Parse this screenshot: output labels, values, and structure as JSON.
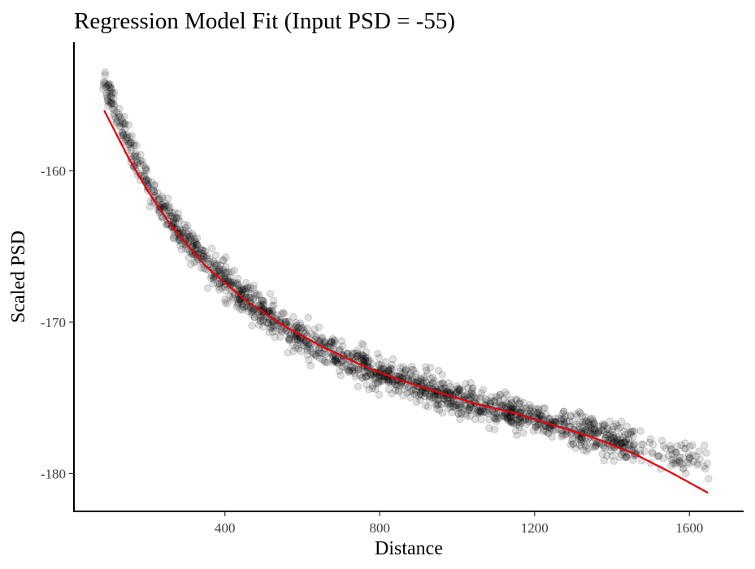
{
  "chart_data": {
    "type": "scatter",
    "title": "Regression Model Fit (Input PSD = -55)",
    "xlabel": "Distance",
    "ylabel": "Scaled PSD",
    "xlim": [
      10,
      1740
    ],
    "ylim": [
      -182.5,
      -151.5
    ],
    "x_ticks": [
      400,
      800,
      1200,
      1600
    ],
    "x_tick_labels": [
      "400",
      "800",
      "1200",
      "1600"
    ],
    "y_ticks": [
      -160,
      -170,
      -180
    ],
    "y_tick_labels": [
      "-160",
      "-170",
      "-180"
    ],
    "grid": false,
    "legend": "none",
    "scatter_color": "#000000",
    "fit_color": "#e8000b",
    "fit_line": {
      "x": [
        88,
        150,
        200,
        260,
        350,
        450,
        550,
        650,
        750,
        850,
        950,
        1050,
        1150,
        1250,
        1350,
        1450,
        1550,
        1650
      ],
      "y": [
        -156.0,
        -159.1,
        -161.3,
        -163.6,
        -166.3,
        -168.5,
        -170.2,
        -171.6,
        -172.8,
        -173.8,
        -174.6,
        -175.4,
        -176.0,
        -176.8,
        -177.6,
        -178.6,
        -179.9,
        -181.3
      ]
    },
    "scatter_trend": {
      "x": [
        88,
        150,
        200,
        260,
        350,
        450,
        550,
        650,
        750,
        850,
        950,
        1050,
        1150,
        1250,
        1350,
        1450,
        1550,
        1650
      ],
      "y": [
        -154.0,
        -158.2,
        -160.8,
        -163.3,
        -166.0,
        -168.4,
        -170.3,
        -171.7,
        -172.9,
        -173.9,
        -174.7,
        -175.4,
        -176.0,
        -176.7,
        -177.4,
        -178.0,
        -178.7,
        -179.4
      ]
    },
    "scatter_x_range": [
      85,
      1650
    ],
    "scatter_spread_sd": 0.55,
    "scatter_points_approx": 1800
  }
}
